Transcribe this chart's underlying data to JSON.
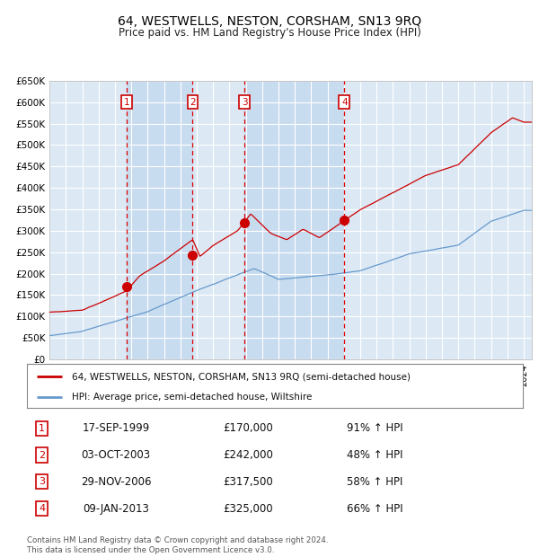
{
  "title": "64, WESTWELLS, NESTON, CORSHAM, SN13 9RQ",
  "subtitle": "Price paid vs. HM Land Registry's House Price Index (HPI)",
  "ylim": [
    0,
    650000
  ],
  "yticks": [
    0,
    50000,
    100000,
    150000,
    200000,
    250000,
    300000,
    350000,
    400000,
    450000,
    500000,
    550000,
    600000,
    650000
  ],
  "ytick_labels": [
    "£0",
    "£50K",
    "£100K",
    "£150K",
    "£200K",
    "£250K",
    "£300K",
    "£350K",
    "£400K",
    "£450K",
    "£500K",
    "£550K",
    "£600K",
    "£650K"
  ],
  "background_color": "#ffffff",
  "plot_bg_color": "#dce9f5",
  "grid_color": "#ffffff",
  "sale_prices": [
    170000,
    242000,
    317500,
    325000
  ],
  "sale_labels": [
    "1",
    "2",
    "3",
    "4"
  ],
  "legend_line1": "64, WESTWELLS, NESTON, CORSHAM, SN13 9RQ (semi-detached house)",
  "legend_line2": "HPI: Average price, semi-detached house, Wiltshire",
  "table_data": [
    [
      "1",
      "17-SEP-1999",
      "£170,000",
      "91% ↑ HPI"
    ],
    [
      "2",
      "03-OCT-2003",
      "£242,000",
      "48% ↑ HPI"
    ],
    [
      "3",
      "29-NOV-2006",
      "£317,500",
      "58% ↑ HPI"
    ],
    [
      "4",
      "09-JAN-2013",
      "£325,000",
      "66% ↑ HPI"
    ]
  ],
  "footer": "Contains HM Land Registry data © Crown copyright and database right 2024.\nThis data is licensed under the Open Government Licence v3.0.",
  "red_line_color": "#cc0000",
  "blue_line_color": "#6699cc",
  "marker_color": "#cc0000",
  "dashed_line_color": "#dd0000",
  "shade_color": "#c8dcf0",
  "label_box_color": "#cc0000",
  "sale_years": [
    1999.71,
    2003.75,
    2006.91,
    2013.03
  ]
}
